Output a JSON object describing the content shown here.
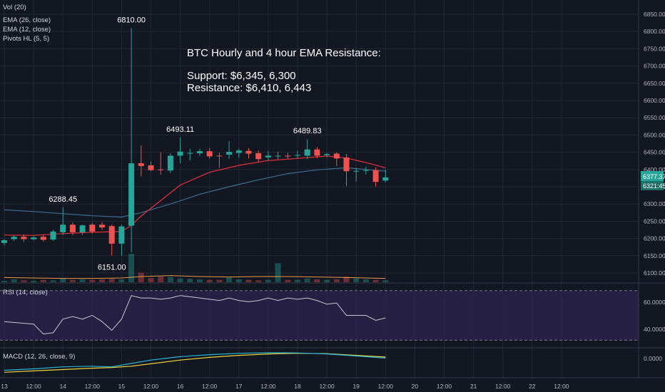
{
  "colors": {
    "background": "#131722",
    "grid": "#242833",
    "up": "#26a69a",
    "down": "#ef5350",
    "ema12": "#e8303a",
    "ema26": "#3c6e91",
    "vol_ma": "#e59a45",
    "rsi_line": "#c8c8d0",
    "rsi_band": "#2e2550",
    "macd_line": "#29b6d8",
    "signal_line": "#f0d43a",
    "price_badge": "#26a69a",
    "text": "#b2b5be"
  },
  "legend": {
    "vol": "Vol (20)",
    "ema26": "EMA (26, close)",
    "ema12": "EMA (12, close)",
    "pivots": "Pivots HL (5, 5)"
  },
  "annotation": {
    "title": "BTC Hourly and 4 hour EMA Resistance:",
    "support": "Support: $6,345, 6,300",
    "resistance": "Resistance: $6,410, 6,443"
  },
  "current_price": {
    "price": "6377.37",
    "countdown": "21:45",
    "prefix": "63"
  },
  "rsi_panel": {
    "label": "RSI (14, close)",
    "ticks": [
      "60.0000",
      "40.0000"
    ]
  },
  "macd_panel": {
    "label": "MACD (12, 26, close, 9)",
    "ticks": [
      "0.0000"
    ]
  },
  "chart_data": {
    "type": "candlestick",
    "price_ticks": [
      6850,
      6800,
      6750,
      6700,
      6650,
      6600,
      6550,
      6500,
      6450,
      6400,
      6350,
      6300,
      6250,
      6200,
      6150,
      6100
    ],
    "price_tick_labels": [
      "6850.00",
      "6800.00",
      "6750.00",
      "6700.00",
      "6650.00",
      "6600.00",
      "6550.00",
      "6500.00",
      "6450.00",
      "6400.00",
      "6350.00",
      "6300.00",
      "6250.00",
      "6200.00",
      "6150.00",
      "6100.00"
    ],
    "x_labels": [
      {
        "t": 0,
        "label": "13"
      },
      {
        "t": 6,
        "label": "12:00"
      },
      {
        "t": 12,
        "label": "14"
      },
      {
        "t": 18,
        "label": "12:00"
      },
      {
        "t": 24,
        "label": "15"
      },
      {
        "t": 30,
        "label": "12:00"
      },
      {
        "t": 36,
        "label": "16"
      },
      {
        "t": 42,
        "label": "12:00"
      },
      {
        "t": 48,
        "label": "17"
      },
      {
        "t": 54,
        "label": "12:00"
      },
      {
        "t": 60,
        "label": "18"
      },
      {
        "t": 66,
        "label": "12:00"
      },
      {
        "t": 72,
        "label": "19"
      },
      {
        "t": 78,
        "label": "12:00"
      },
      {
        "t": 84,
        "label": "20"
      },
      {
        "t": 90,
        "label": "12:00"
      },
      {
        "t": 96,
        "label": "21"
      },
      {
        "t": 102,
        "label": "12:00"
      },
      {
        "t": 108,
        "label": "22"
      },
      {
        "t": 114,
        "label": "12:00"
      }
    ],
    "candles": [
      {
        "t": 0,
        "o": 6187,
        "h": 6198,
        "c": 6195,
        "l": 6180
      },
      {
        "t": 2,
        "o": 6198,
        "h": 6210,
        "c": 6205,
        "l": 6192
      },
      {
        "t": 4,
        "o": 6205,
        "h": 6212,
        "c": 6198,
        "l": 6190
      },
      {
        "t": 6,
        "o": 6198,
        "h": 6207,
        "c": 6203,
        "l": 6194
      },
      {
        "t": 8,
        "o": 6205,
        "h": 6210,
        "c": 6196,
        "l": 6191
      },
      {
        "t": 10,
        "o": 6197,
        "h": 6225,
        "c": 6220,
        "l": 6193
      },
      {
        "t": 12,
        "o": 6218,
        "h": 6290,
        "c": 6240,
        "l": 6210
      },
      {
        "t": 14,
        "o": 6240,
        "h": 6247,
        "c": 6218,
        "l": 6210
      },
      {
        "t": 16,
        "o": 6218,
        "h": 6240,
        "c": 6238,
        "l": 6210
      },
      {
        "t": 18,
        "o": 6240,
        "h": 6245,
        "c": 6220,
        "l": 6214
      },
      {
        "t": 20,
        "o": 6240,
        "h": 6248,
        "c": 6232,
        "l": 6225
      },
      {
        "t": 22,
        "o": 6236,
        "h": 6240,
        "c": 6185,
        "l": 6151
      },
      {
        "t": 24,
        "o": 6185,
        "h": 6240,
        "c": 6235,
        "l": 6150
      },
      {
        "t": 26,
        "o": 6237,
        "h": 6810,
        "c": 6418,
        "l": 6160
      },
      {
        "t": 28,
        "o": 6418,
        "h": 6470,
        "c": 6410,
        "l": 6380
      },
      {
        "t": 30,
        "o": 6412,
        "h": 6423,
        "c": 6398,
        "l": 6395
      },
      {
        "t": 32,
        "o": 6400,
        "h": 6450,
        "c": 6399,
        "l": 6385
      },
      {
        "t": 34,
        "o": 6397,
        "h": 6447,
        "c": 6440,
        "l": 6390
      },
      {
        "t": 36,
        "o": 6440,
        "h": 6493,
        "c": 6452,
        "l": 6418
      },
      {
        "t": 38,
        "o": 6448,
        "h": 6460,
        "c": 6448,
        "l": 6426
      },
      {
        "t": 40,
        "o": 6447,
        "h": 6460,
        "c": 6453,
        "l": 6440
      },
      {
        "t": 42,
        "o": 6453,
        "h": 6462,
        "c": 6438,
        "l": 6432
      },
      {
        "t": 44,
        "o": 6440,
        "h": 6448,
        "c": 6439,
        "l": 6405
      },
      {
        "t": 46,
        "o": 6443,
        "h": 6482,
        "c": 6451,
        "l": 6431
      },
      {
        "t": 48,
        "o": 6448,
        "h": 6461,
        "c": 6455,
        "l": 6434
      },
      {
        "t": 50,
        "o": 6454,
        "h": 6462,
        "c": 6446,
        "l": 6432
      },
      {
        "t": 52,
        "o": 6447,
        "h": 6455,
        "c": 6430,
        "l": 6420
      },
      {
        "t": 54,
        "o": 6435,
        "h": 6453,
        "c": 6440,
        "l": 6425
      },
      {
        "t": 56,
        "o": 6440,
        "h": 6452,
        "c": 6440,
        "l": 6430
      },
      {
        "t": 58,
        "o": 6440,
        "h": 6448,
        "c": 6438,
        "l": 6432
      },
      {
        "t": 60,
        "o": 6440,
        "h": 6454,
        "c": 6442,
        "l": 6432
      },
      {
        "t": 62,
        "o": 6440,
        "h": 6488,
        "c": 6458,
        "l": 6430
      },
      {
        "t": 64,
        "o": 6458,
        "h": 6465,
        "c": 6440,
        "l": 6432
      },
      {
        "t": 66,
        "o": 6442,
        "h": 6448,
        "c": 6445,
        "l": 6436
      },
      {
        "t": 68,
        "o": 6446,
        "h": 6450,
        "c": 6432,
        "l": 6410
      },
      {
        "t": 70,
        "o": 6435,
        "h": 6445,
        "c": 6395,
        "l": 6352
      },
      {
        "t": 72,
        "o": 6395,
        "h": 6405,
        "c": 6396,
        "l": 6365
      },
      {
        "t": 74,
        "o": 6398,
        "h": 6408,
        "c": 6398,
        "l": 6385
      },
      {
        "t": 76,
        "o": 6398,
        "h": 6406,
        "c": 6364,
        "l": 6350
      },
      {
        "t": 78,
        "o": 6368,
        "h": 6400,
        "c": 6377,
        "l": 6363
      }
    ],
    "pivot_labels": [
      {
        "t": 12,
        "value": "6288.45",
        "kind": "high"
      },
      {
        "t": 22,
        "value": "6151.00",
        "kind": "low"
      },
      {
        "t": 26,
        "value": "6810.00",
        "kind": "high"
      },
      {
        "t": 36,
        "value": "6493.11",
        "kind": "high"
      },
      {
        "t": 62,
        "value": "6489.83",
        "kind": "high"
      }
    ],
    "ema12": [
      [
        0,
        6210
      ],
      [
        6,
        6209
      ],
      [
        12,
        6214
      ],
      [
        18,
        6218
      ],
      [
        24,
        6220
      ],
      [
        26,
        6238
      ],
      [
        28,
        6265
      ],
      [
        32,
        6310
      ],
      [
        36,
        6355
      ],
      [
        42,
        6392
      ],
      [
        48,
        6412
      ],
      [
        54,
        6426
      ],
      [
        60,
        6432
      ],
      [
        66,
        6439
      ],
      [
        70,
        6433
      ],
      [
        74,
        6420
      ],
      [
        78,
        6405
      ]
    ],
    "ema26": [
      [
        0,
        6283
      ],
      [
        6,
        6278
      ],
      [
        12,
        6272
      ],
      [
        18,
        6266
      ],
      [
        24,
        6262
      ],
      [
        28,
        6275
      ],
      [
        34,
        6300
      ],
      [
        40,
        6328
      ],
      [
        46,
        6350
      ],
      [
        52,
        6370
      ],
      [
        58,
        6388
      ],
      [
        64,
        6399
      ],
      [
        70,
        6405
      ],
      [
        74,
        6400
      ],
      [
        78,
        6395
      ]
    ],
    "volume": [
      3,
      6,
      4,
      3,
      5,
      4,
      8,
      5,
      6,
      5,
      6,
      7,
      6,
      60,
      20,
      9,
      12,
      11,
      8,
      7,
      6,
      5,
      5,
      10,
      6,
      5,
      4,
      5,
      40,
      5,
      5,
      8,
      6,
      5,
      6,
      12,
      8,
      6,
      5,
      4
    ],
    "volume_ma": [
      [
        0,
        10
      ],
      [
        6,
        9
      ],
      [
        12,
        8
      ],
      [
        18,
        8
      ],
      [
        24,
        9
      ],
      [
        28,
        12
      ],
      [
        34,
        14
      ],
      [
        40,
        12
      ],
      [
        46,
        11
      ],
      [
        52,
        12
      ],
      [
        58,
        12
      ],
      [
        64,
        11
      ],
      [
        70,
        10
      ],
      [
        74,
        9
      ],
      [
        78,
        8
      ]
    ],
    "rsi": [
      [
        0,
        45
      ],
      [
        6,
        43
      ],
      [
        8,
        35
      ],
      [
        10,
        36
      ],
      [
        12,
        47
      ],
      [
        14,
        49
      ],
      [
        16,
        47
      ],
      [
        18,
        50
      ],
      [
        20,
        45
      ],
      [
        22,
        38
      ],
      [
        24,
        47
      ],
      [
        26,
        66
      ],
      [
        28,
        64
      ],
      [
        30,
        64
      ],
      [
        32,
        63
      ],
      [
        34,
        64
      ],
      [
        36,
        66
      ],
      [
        38,
        65
      ],
      [
        40,
        64
      ],
      [
        42,
        63
      ],
      [
        44,
        62
      ],
      [
        46,
        64
      ],
      [
        48,
        62
      ],
      [
        50,
        61
      ],
      [
        52,
        62
      ],
      [
        54,
        64
      ],
      [
        56,
        62
      ],
      [
        58,
        64
      ],
      [
        60,
        63
      ],
      [
        62,
        64
      ],
      [
        64,
        62
      ],
      [
        66,
        59
      ],
      [
        68,
        60
      ],
      [
        70,
        50
      ],
      [
        72,
        50
      ],
      [
        74,
        50
      ],
      [
        76,
        46
      ],
      [
        78,
        48
      ]
    ],
    "rsi_ylim": [
      25,
      75
    ],
    "macd": [
      [
        0,
        -22
      ],
      [
        6,
        -18
      ],
      [
        12,
        -12
      ],
      [
        18,
        -10
      ],
      [
        22,
        -12
      ],
      [
        26,
        -2
      ],
      [
        30,
        8
      ],
      [
        36,
        18
      ],
      [
        42,
        24
      ],
      [
        48,
        28
      ],
      [
        54,
        30
      ],
      [
        60,
        29
      ],
      [
        66,
        26
      ],
      [
        72,
        20
      ],
      [
        78,
        14
      ]
    ],
    "signal": [
      [
        0,
        -28
      ],
      [
        6,
        -24
      ],
      [
        12,
        -20
      ],
      [
        18,
        -16
      ],
      [
        22,
        -14
      ],
      [
        26,
        -10
      ],
      [
        30,
        -3
      ],
      [
        36,
        8
      ],
      [
        42,
        16
      ],
      [
        48,
        22
      ],
      [
        54,
        26
      ],
      [
        60,
        28
      ],
      [
        66,
        27
      ],
      [
        72,
        22
      ],
      [
        78,
        17
      ]
    ],
    "macd_ylim": [
      -40,
      40
    ]
  }
}
